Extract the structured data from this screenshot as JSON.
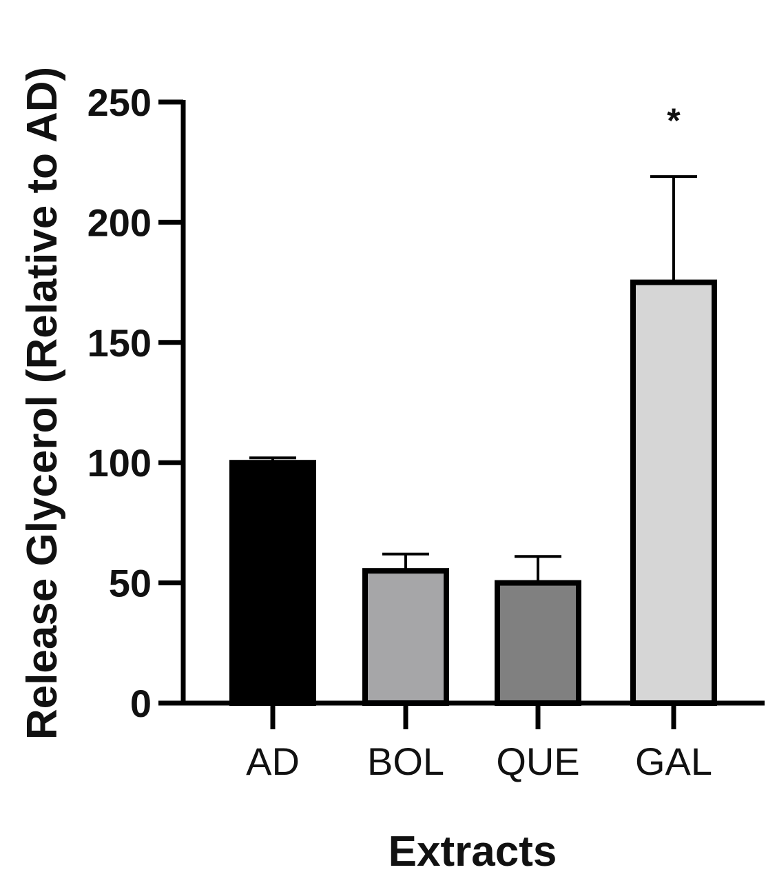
{
  "chart_data": {
    "type": "bar",
    "categories": [
      "AD",
      "BOL",
      "QUE",
      "GAL"
    ],
    "series": [
      {
        "values": [
          100,
          55,
          50,
          175
        ],
        "errors": [
          2,
          7,
          11,
          44
        ],
        "colors": [
          "#000000",
          "#a6a6a8",
          "#808080",
          "#d6d6d6"
        ]
      }
    ],
    "annotations": [
      {
        "category": "GAL",
        "text": "*"
      }
    ],
    "xlabel": "Extracts",
    "ylabel": "Release Glycerol (Relative to AD)",
    "ylim": [
      0,
      250
    ],
    "yticks": [
      0,
      50,
      100,
      150,
      200,
      250
    ],
    "grid": false,
    "legend": "none"
  }
}
